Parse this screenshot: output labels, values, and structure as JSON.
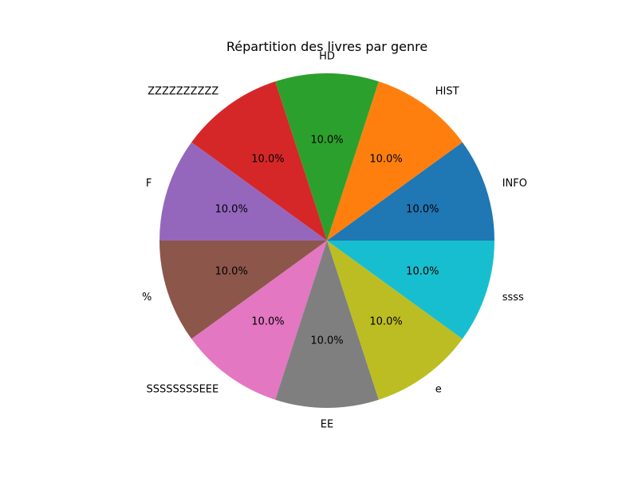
{
  "chart_data": {
    "type": "pie",
    "title": "Répartition des livres par genre",
    "categories": [
      "INFO",
      "HIST",
      "HD",
      "ZZZZZZZZZZ",
      "F",
      "%",
      "SSSSSSSSEEE",
      "EE",
      "e",
      "ssss"
    ],
    "values": [
      10,
      10,
      10,
      10,
      10,
      10,
      10,
      10,
      10,
      10
    ],
    "percent_labels": [
      "10.0%",
      "10.0%",
      "10.0%",
      "10.0%",
      "10.0%",
      "10.0%",
      "10.0%",
      "10.0%",
      "10.0%",
      "10.0%"
    ],
    "colors": [
      "#1f77b4",
      "#ff7f0e",
      "#2ca02c",
      "#d62728",
      "#9467bd",
      "#8c564b",
      "#e377c2",
      "#7f7f7f",
      "#bcbd22",
      "#17becf"
    ],
    "start_angle_deg": 0,
    "direction": "counterclockwise"
  }
}
